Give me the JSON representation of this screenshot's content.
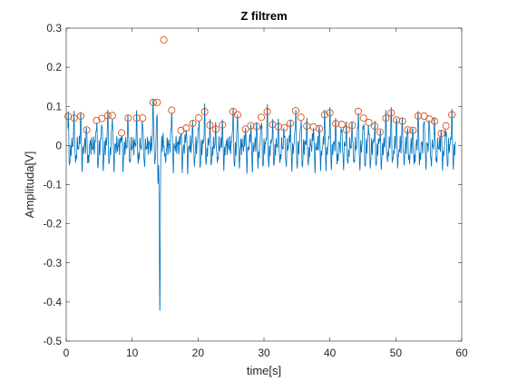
{
  "chart_data": {
    "type": "line",
    "title": "Z filtrem",
    "xlabel": "time[s]",
    "ylabel": "Amplituda[V]",
    "xlim": [
      0,
      60
    ],
    "ylim": [
      -0.5,
      0.3
    ],
    "xticks": [
      0,
      10,
      20,
      30,
      40,
      50,
      60
    ],
    "yticks": [
      -0.5,
      -0.4,
      -0.3,
      -0.2,
      -0.1,
      0,
      0.1,
      0.2,
      0.3
    ],
    "xtick_labels": [
      "0",
      "10",
      "20",
      "30",
      "40",
      "50",
      "60"
    ],
    "ytick_labels": [
      "-0.5",
      "-0.4",
      "-0.3",
      "-0.2",
      "-0.1",
      "0",
      "0.1",
      "0.2",
      "0.3"
    ],
    "grid": false,
    "series": [
      {
        "kind": "signal",
        "color": "#0072BD"
      },
      {
        "kind": "peaks",
        "marker": "circle",
        "color": "#D95319",
        "x": [
          0.3,
          1.2,
          2.2,
          3.1,
          4.6,
          5.4,
          6.3,
          7.0,
          8.4,
          9.4,
          10.7,
          11.6,
          13.2,
          13.8,
          14.8,
          16.0,
          17.4,
          18.2,
          19.2,
          20.1,
          21.0,
          21.8,
          22.7,
          23.7,
          25.3,
          26.0,
          27.2,
          28.0,
          28.9,
          29.6,
          30.5,
          31.3,
          32.2,
          33.1,
          34.0,
          34.8,
          35.6,
          36.5,
          37.5,
          38.4,
          39.2,
          40.0,
          40.9,
          41.8,
          42.5,
          43.4,
          44.3,
          45.1,
          45.9,
          46.8,
          47.6,
          48.5,
          49.3,
          50.1,
          51.0,
          51.8,
          52.6,
          53.4,
          54.3,
          55.1,
          55.9,
          56.9,
          57.6,
          58.5
        ]
      }
    ]
  }
}
